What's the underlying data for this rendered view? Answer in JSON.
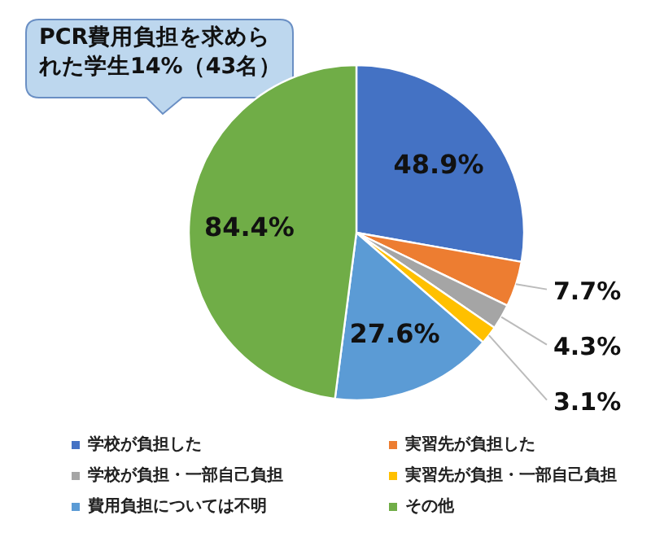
{
  "chart_data": {
    "type": "pie",
    "categories": [
      "学校が負担した",
      "実習先が負担した",
      "学校が負担・一部自己負担",
      "実習先が負担・一部自己負担",
      "費用負担については不明",
      "その他"
    ],
    "values": [
      48.9,
      7.7,
      4.3,
      3.1,
      27.6,
      84.4
    ],
    "value_labels": [
      "48.9%",
      "7.7%",
      "4.3%",
      "3.1%",
      "27.6%",
      "84.4%"
    ],
    "colors": [
      "#4472c4",
      "#ed7d31",
      "#a5a5a5",
      "#ffc000",
      "#5b9bd5",
      "#70ad47"
    ],
    "annotations": [
      "PCR費用負担を求められた学生14%（43名）"
    ],
    "legend": "bottom"
  }
}
